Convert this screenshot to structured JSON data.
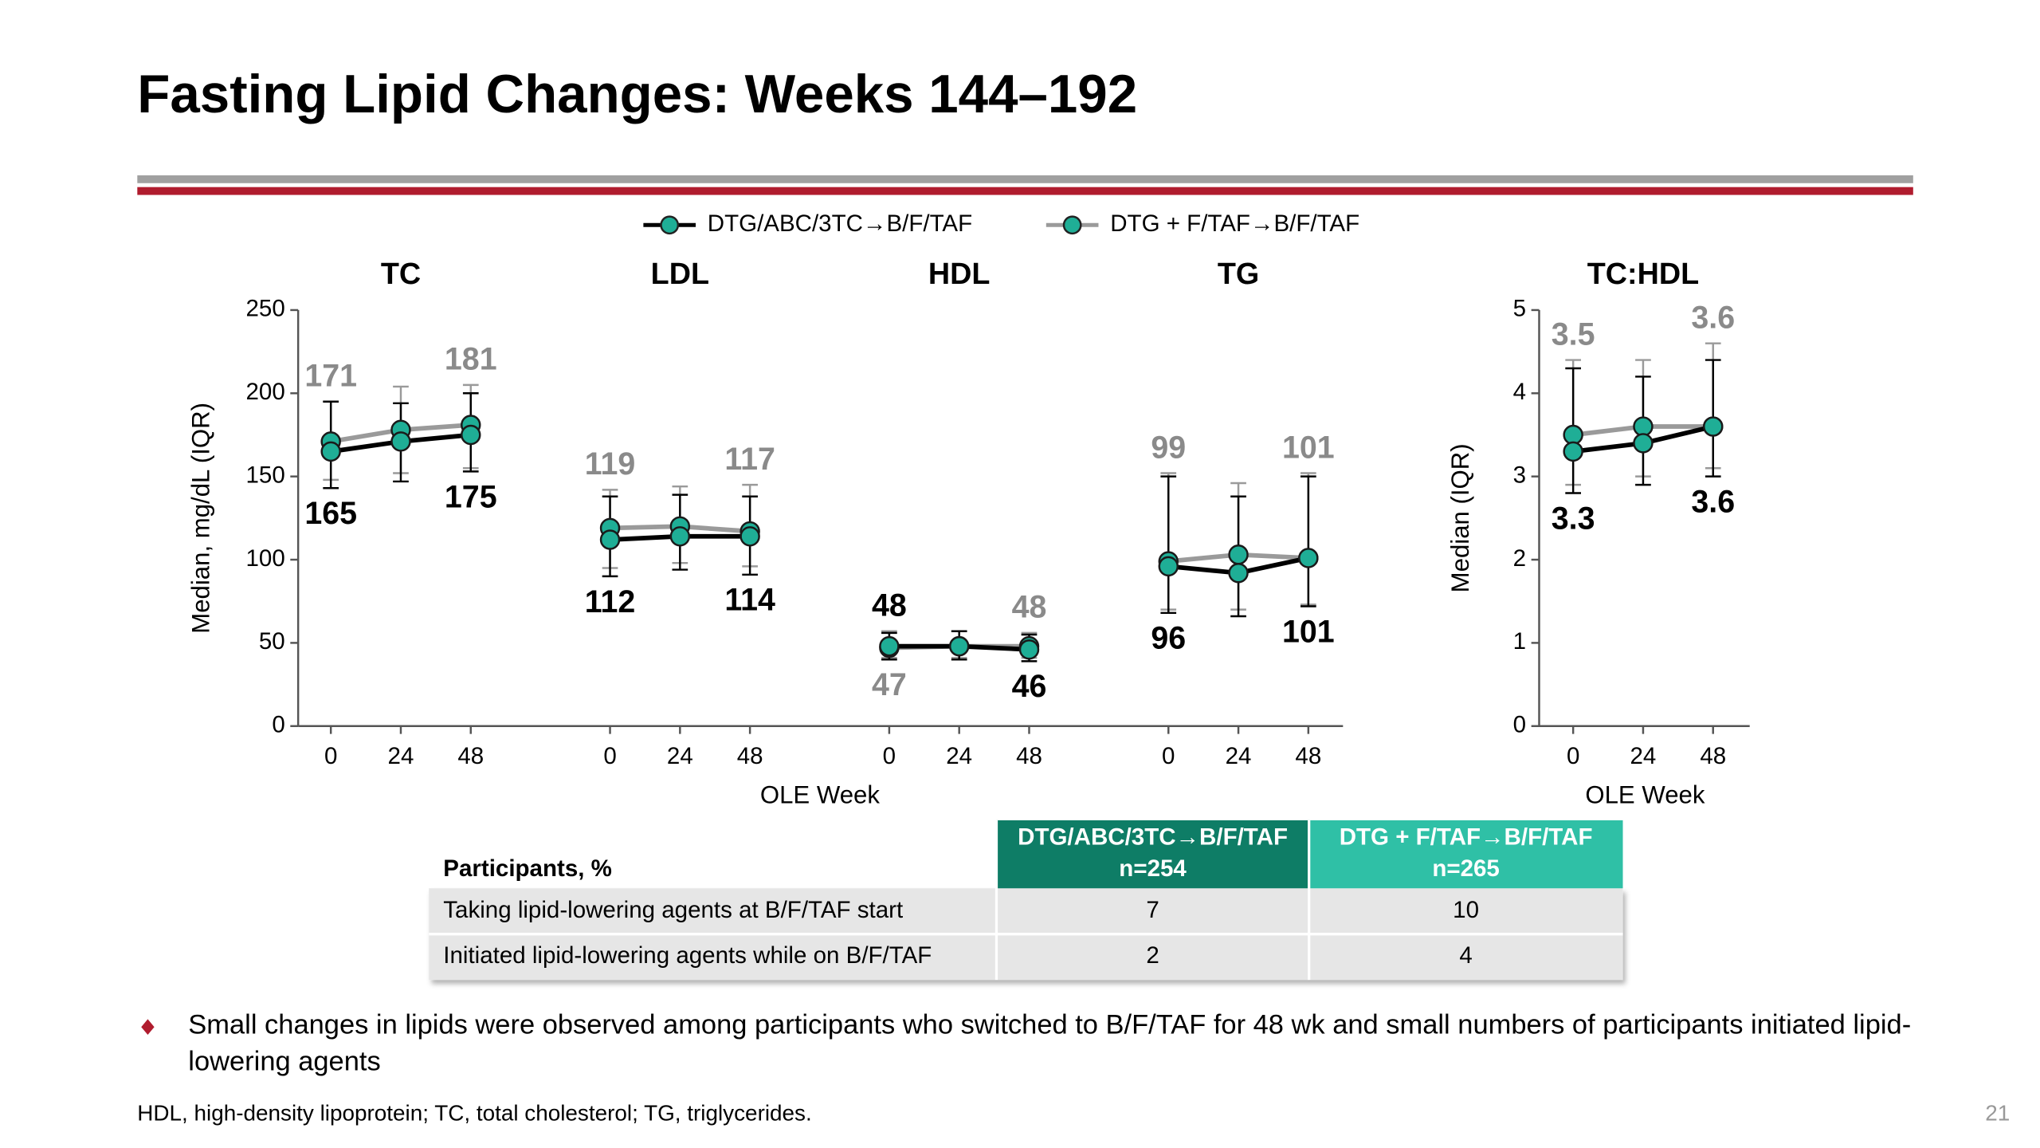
{
  "title": "Fasting Lipid Changes: Weeks 144–192",
  "chart_data": [
    {
      "type": "line",
      "ylabel": "Median, mg/dL (IQR)",
      "xlabel": "OLE Week",
      "panels": [
        "TC",
        "LDL",
        "HDL",
        "TG"
      ],
      "x": [
        0,
        24,
        48
      ],
      "ylim": [
        0,
        250
      ],
      "yticks": [
        0,
        50,
        100,
        150,
        200,
        250
      ],
      "series": [
        {
          "name": "DTG/ABC/3TC→B/F/TAF",
          "color": "#000000",
          "marker_color": "#1fae96",
          "values": [
            [
              165,
              171,
              175
            ],
            [
              112,
              114,
              114
            ],
            [
              48,
              48,
              46
            ],
            [
              96,
              92,
              101
            ]
          ],
          "iqr_low": [
            [
              143,
              147,
              153
            ],
            [
              90,
              94,
              91
            ],
            [
              40,
              40,
              39
            ],
            [
              68,
              66,
              72
            ]
          ],
          "iqr_high": [
            [
              195,
              194,
              200
            ],
            [
              138,
              139,
              138
            ],
            [
              56,
              57,
              55
            ],
            [
              150,
              138,
              150
            ]
          ]
        },
        {
          "name": "DTG + F/TAF→B/F/TAF",
          "color": "#9a9a9a",
          "marker_color": "#1fae96",
          "values": [
            [
              171,
              178,
              181
            ],
            [
              119,
              120,
              117
            ],
            [
              47,
              48,
              48
            ],
            [
              99,
              103,
              101
            ]
          ],
          "iqr_low": [
            [
              148,
              152,
              155
            ],
            [
              95,
              98,
              96
            ],
            [
              41,
              41,
              41
            ],
            [
              70,
              70,
              73
            ]
          ],
          "iqr_high": [
            [
              195,
              204,
              205
            ],
            [
              142,
              144,
              145
            ],
            [
              57,
              57,
              56
            ],
            [
              152,
              146,
              152
            ]
          ]
        }
      ]
    },
    {
      "type": "line",
      "ylabel": "Median (IQR)",
      "xlabel": "OLE Week",
      "panels": [
        "TC:HDL"
      ],
      "x": [
        0,
        24,
        48
      ],
      "ylim": [
        0,
        5
      ],
      "yticks": [
        0,
        1,
        2,
        3,
        4,
        5
      ],
      "series": [
        {
          "color": "#000000",
          "marker_color": "#1fae96",
          "values": [
            [
              3.3,
              3.4,
              3.6
            ]
          ],
          "iqr_low": [
            [
              2.8,
              2.9,
              3.0
            ]
          ],
          "iqr_high": [
            [
              4.3,
              4.2,
              4.4
            ]
          ]
        },
        {
          "color": "#9a9a9a",
          "marker_color": "#1fae96",
          "values": [
            [
              3.5,
              3.6,
              3.6
            ]
          ],
          "iqr_low": [
            [
              2.9,
              3.0,
              3.1
            ]
          ],
          "iqr_high": [
            [
              4.4,
              4.4,
              4.6
            ]
          ]
        }
      ]
    }
  ],
  "table": {
    "header": "Participants, %",
    "columns": [
      {
        "name": "DTG/ABC/3TC→B/F/TAF",
        "n": "n=254",
        "color": "#0e7d66"
      },
      {
        "name": "DTG + F/TAF→B/F/TAF",
        "n": "n=265",
        "color": "#2fc0a6"
      }
    ],
    "rows": [
      {
        "label": "Taking lipid-lowering agents at B/F/TAF start",
        "values": [
          7,
          10
        ]
      },
      {
        "label": "Initiated lipid-lowering agents while on B/F/TAF",
        "values": [
          2,
          4
        ]
      }
    ]
  },
  "bullet": "Small changes in lipids were observed among participants who switched to B/F/TAF for 48 wk and small numbers of participants initiated lipid-lowering agents",
  "footnote": "HDL, high-density lipoprotein; TC, total cholesterol; TG, triglycerides.",
  "page_number": "21"
}
